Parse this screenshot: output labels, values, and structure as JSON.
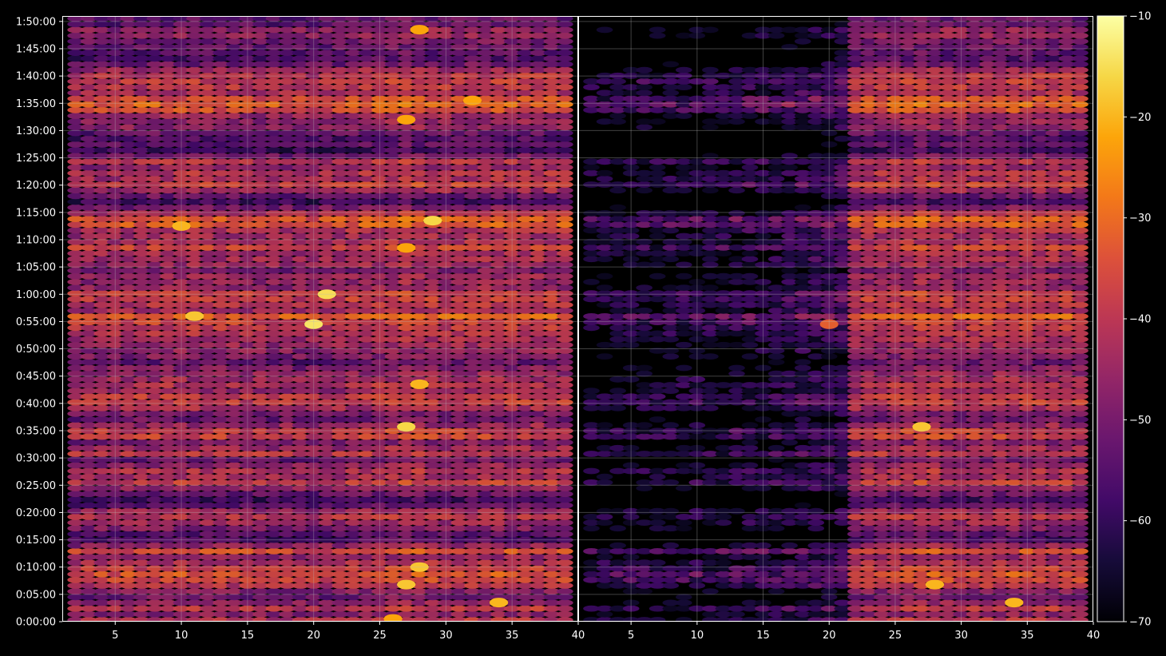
{
  "chart_data": [
    {
      "type": "heatmap",
      "panel": "left",
      "title": "",
      "xlabel": "",
      "ylabel": "",
      "xlim": [
        1,
        40
      ],
      "ylim": [
        "0:00:00",
        "1:51:00"
      ],
      "grid": true,
      "x_ticks": [
        "5",
        "10",
        "15",
        "20",
        "25",
        "30",
        "35",
        "40"
      ],
      "y_ticks": [
        "0:00:00",
        "0:05:00",
        "0:10:00",
        "0:15:00",
        "0:20:00",
        "0:25:00",
        "0:30:00",
        "0:35:00",
        "0:40:00",
        "0:45:00",
        "0:50:00",
        "0:55:00",
        "1:00:00",
        "1:05:00",
        "1:10:00",
        "1:15:00",
        "1:20:00",
        "1:25:00",
        "1:30:00",
        "1:35:00",
        "1:40:00",
        "1:45:00",
        "1:50:00"
      ],
      "x_range": [
        2,
        39
      ],
      "row_profile_minutes": [
        [
          0.5,
          -42
        ],
        [
          1.5,
          -50
        ],
        [
          2.5,
          -40
        ],
        [
          3.5,
          -48
        ],
        [
          5.0,
          -55
        ],
        [
          6.0,
          -45
        ],
        [
          7.0,
          -40
        ],
        [
          8.5,
          -35
        ],
        [
          10.0,
          -40
        ],
        [
          11.0,
          -45
        ],
        [
          12.0,
          -48
        ],
        [
          13.0,
          -35
        ],
        [
          14.5,
          -55
        ],
        [
          15.5,
          -60
        ],
        [
          17.0,
          -50
        ],
        [
          18.5,
          -45
        ],
        [
          19.5,
          -40
        ],
        [
          20.5,
          -48
        ],
        [
          22.0,
          -62
        ],
        [
          25.5,
          -40
        ],
        [
          26.5,
          -45
        ],
        [
          27.5,
          -42
        ],
        [
          29.0,
          -50
        ],
        [
          30.0,
          -55
        ],
        [
          31.0,
          -36
        ],
        [
          32.5,
          -55
        ],
        [
          34.0,
          -38
        ],
        [
          35.0,
          -40
        ],
        [
          36.5,
          -50
        ],
        [
          37.5,
          -55
        ],
        [
          39.5,
          -42
        ],
        [
          41.0,
          -38
        ],
        [
          42.5,
          -48
        ],
        [
          43.0,
          -42
        ],
        [
          44.5,
          -46
        ],
        [
          46.0,
          -48
        ],
        [
          47.5,
          -55
        ],
        [
          48.5,
          -50
        ],
        [
          53.5,
          -42
        ],
        [
          55.0,
          -38
        ],
        [
          56.0,
          -32
        ],
        [
          57.0,
          -45
        ],
        [
          59.0,
          -40
        ],
        [
          60.0,
          -38
        ],
        [
          61.5,
          -50
        ],
        [
          63.0,
          -45
        ],
        [
          64.5,
          -52
        ],
        [
          66.0,
          -42
        ],
        [
          67.0,
          -48
        ],
        [
          68.5,
          -38
        ],
        [
          70.0,
          -46
        ],
        [
          71.5,
          -45
        ],
        [
          72.5,
          -35
        ],
        [
          73.5,
          -32
        ],
        [
          74.5,
          -40
        ],
        [
          77.0,
          -60
        ],
        [
          78.5,
          -50
        ],
        [
          80.0,
          -38
        ],
        [
          81.0,
          -45
        ],
        [
          82.5,
          -42
        ],
        [
          83.5,
          -50
        ],
        [
          84.5,
          -40
        ],
        [
          86.0,
          -62
        ],
        [
          87.5,
          -55
        ],
        [
          89.0,
          -58
        ],
        [
          90.5,
          -48
        ],
        [
          92.5,
          -48
        ],
        [
          93.5,
          -38
        ],
        [
          94.5,
          -33
        ],
        [
          95.5,
          -32
        ],
        [
          96.5,
          -45
        ],
        [
          98.5,
          -40
        ],
        [
          100.5,
          -42
        ],
        [
          102.0,
          -52
        ],
        [
          103.0,
          -58
        ],
        [
          106.5,
          -52
        ],
        [
          108.0,
          -45
        ],
        [
          109.5,
          -55
        ]
      ],
      "column_gain_db": [
        [
          2,
          0
        ],
        [
          10,
          2
        ],
        [
          20,
          0
        ],
        [
          27,
          4
        ],
        [
          30,
          2
        ],
        [
          33,
          3
        ],
        [
          39,
          2
        ]
      ],
      "hot_spots": [
        {
          "x": 26,
          "t_minutes": 0.5,
          "value": -22
        },
        {
          "x": 27,
          "t_minutes": 6.8,
          "value": -18
        },
        {
          "x": 28,
          "t_minutes": 10.0,
          "value": -18
        },
        {
          "x": 34,
          "t_minutes": 3.5,
          "value": -20
        },
        {
          "x": 27,
          "t_minutes": 35.7,
          "value": -16
        },
        {
          "x": 28,
          "t_minutes": 43.5,
          "value": -20
        },
        {
          "x": 20,
          "t_minutes": 54.5,
          "value": -14
        },
        {
          "x": 11,
          "t_minutes": 56.0,
          "value": -18
        },
        {
          "x": 21,
          "t_minutes": 60.0,
          "value": -15
        },
        {
          "x": 10,
          "t_minutes": 72.5,
          "value": -20
        },
        {
          "x": 27,
          "t_minutes": 68.5,
          "value": -22
        },
        {
          "x": 29,
          "t_minutes": 73.5,
          "value": -16
        },
        {
          "x": 27,
          "t_minutes": 92.0,
          "value": -22
        },
        {
          "x": 32,
          "t_minutes": 95.5,
          "value": -22
        },
        {
          "x": 28,
          "t_minutes": 108.5,
          "value": -22
        }
      ]
    },
    {
      "type": "heatmap",
      "panel": "right",
      "title": "",
      "xlabel": "",
      "ylabel": "",
      "xlim": [
        1,
        40
      ],
      "ylim": [
        "0:00:00",
        "1:51:00"
      ],
      "grid": true,
      "x_ticks": [
        "5",
        "10",
        "15",
        "20",
        "25",
        "30",
        "35",
        "40"
      ],
      "x_range": [
        2,
        39
      ],
      "mirrors_left_panel_from_x": 22,
      "fade_region": {
        "x_from": 2,
        "x_to": 22,
        "attenuation_db": 18
      },
      "hot_spots": [
        {
          "x": 20,
          "t_minutes": 54.5,
          "value": -32
        },
        {
          "x": 27,
          "t_minutes": 35.7,
          "value": -18
        },
        {
          "x": 34,
          "t_minutes": 3.5,
          "value": -20
        },
        {
          "x": 28,
          "t_minutes": 6.8,
          "value": -20
        }
      ]
    }
  ],
  "colorbar": {
    "colormap": "inferno",
    "range": [
      -70,
      -10
    ],
    "ticks": [
      "−10",
      "−20",
      "−30",
      "−40",
      "−50",
      "−60",
      "−70"
    ]
  },
  "colors": {
    "background": "#000000",
    "axes_frame": "#ffffff",
    "grid": "#bbbbbb"
  }
}
